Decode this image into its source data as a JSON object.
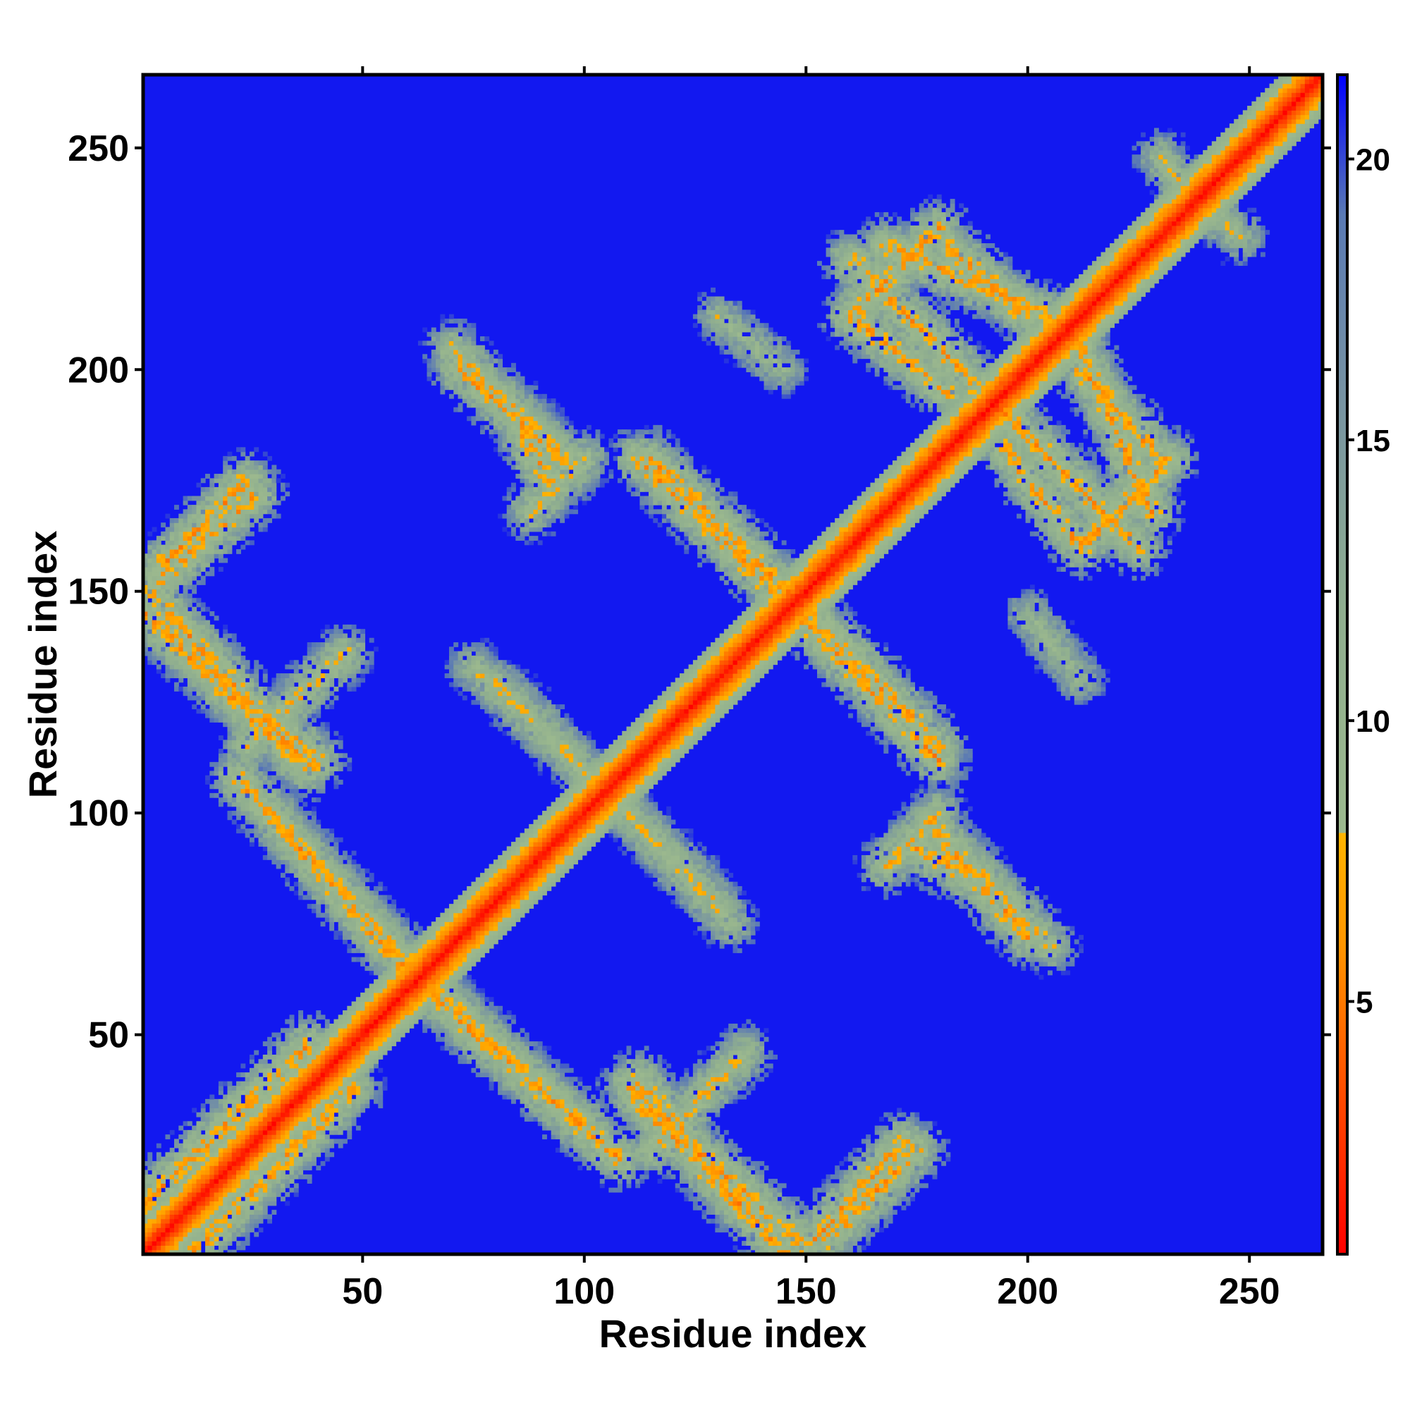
{
  "chart_data": {
    "type": "heatmap",
    "title": "",
    "xlabel": "Residue index",
    "ylabel": "Residue index",
    "xlim": [
      1,
      266
    ],
    "ylim": [
      1,
      266
    ],
    "x_ticks": [
      50,
      100,
      150,
      200,
      250
    ],
    "y_ticks": [
      50,
      100,
      150,
      200,
      250
    ],
    "colorbar": {
      "ticks": [
        5,
        10,
        15,
        20
      ],
      "range": [
        0.5,
        21.5
      ],
      "stops": [
        {
          "value": 0.5,
          "color": "#ff0000"
        },
        {
          "value": 3.5,
          "color": "#ff5000"
        },
        {
          "value": 6.0,
          "color": "#ff9500"
        },
        {
          "value": 8.0,
          "color": "#ffb400"
        },
        {
          "value": 8.0,
          "color": "#9cb98e"
        },
        {
          "value": 12.0,
          "color": "#8fae8f"
        },
        {
          "value": 16.0,
          "color": "#7591a4"
        },
        {
          "value": 19.0,
          "color": "#5a7ab4"
        },
        {
          "value": 21.5,
          "color": "#0000ff"
        }
      ]
    },
    "background_value": 21,
    "diagonal": {
      "from": 1,
      "to": 266,
      "band_width": 9
    },
    "contact_bands": [
      {
        "x1": 1,
        "y1": 12,
        "x2": 38,
        "y2": 48,
        "peak_value": 7
      },
      {
        "x1": 62,
        "y1": 62,
        "x2": 108,
        "y2": 22,
        "peak_value": 7
      },
      {
        "x1": 110,
        "y1": 38,
        "x2": 150,
        "y2": 2,
        "peak_value": 7
      },
      {
        "x1": 152,
        "y1": 4,
        "x2": 172,
        "y2": 26,
        "peak_value": 7
      },
      {
        "x1": 112,
        "y1": 40,
        "x2": 135,
        "y2": 12,
        "peak_value": 7
      },
      {
        "x1": 30,
        "y1": 100,
        "x2": 62,
        "y2": 64,
        "peak_value": 8
      },
      {
        "x1": 65,
        "y1": 62,
        "x2": 100,
        "y2": 28,
        "peak_value": 8
      },
      {
        "x1": 1,
        "y1": 145,
        "x2": 35,
        "y2": 112,
        "peak_value": 7
      },
      {
        "x1": 4,
        "y1": 155,
        "x2": 24,
        "y2": 175,
        "peak_value": 7
      },
      {
        "x1": 24,
        "y1": 115,
        "x2": 46,
        "y2": 136,
        "peak_value": 8
      },
      {
        "x1": 70,
        "y1": 205,
        "x2": 98,
        "y2": 178,
        "peak_value": 8
      },
      {
        "x1": 86,
        "y1": 186,
        "x2": 92,
        "y2": 175,
        "peak_value": 7
      },
      {
        "x1": 112,
        "y1": 180,
        "x2": 145,
        "y2": 148,
        "peak_value": 7
      },
      {
        "x1": 148,
        "y1": 148,
        "x2": 180,
        "y2": 115,
        "peak_value": 7
      },
      {
        "x1": 75,
        "y1": 133,
        "x2": 110,
        "y2": 100,
        "peak_value": 9
      },
      {
        "x1": 110,
        "y1": 100,
        "x2": 130,
        "y2": 80,
        "peak_value": 9
      },
      {
        "x1": 168,
        "y1": 88,
        "x2": 180,
        "y2": 100,
        "peak_value": 8
      },
      {
        "x1": 180,
        "y1": 95,
        "x2": 200,
        "y2": 72,
        "peak_value": 7
      },
      {
        "x1": 160,
        "y1": 225,
        "x2": 190,
        "y2": 195,
        "peak_value": 7
      },
      {
        "x1": 168,
        "y1": 228,
        "x2": 205,
        "y2": 212,
        "peak_value": 7
      },
      {
        "x1": 195,
        "y1": 182,
        "x2": 212,
        "y2": 160,
        "peak_value": 7
      },
      {
        "x1": 212,
        "y1": 160,
        "x2": 232,
        "y2": 180,
        "peak_value": 7
      },
      {
        "x1": 212,
        "y1": 200,
        "x2": 228,
        "y2": 182,
        "peak_value": 7
      },
      {
        "x1": 130,
        "y1": 212,
        "x2": 145,
        "y2": 200,
        "peak_value": 10
      },
      {
        "x1": 235,
        "y1": 240,
        "x2": 248,
        "y2": 230,
        "peak_value": 9
      }
    ],
    "grid": false,
    "legend": "colorbar-right"
  }
}
